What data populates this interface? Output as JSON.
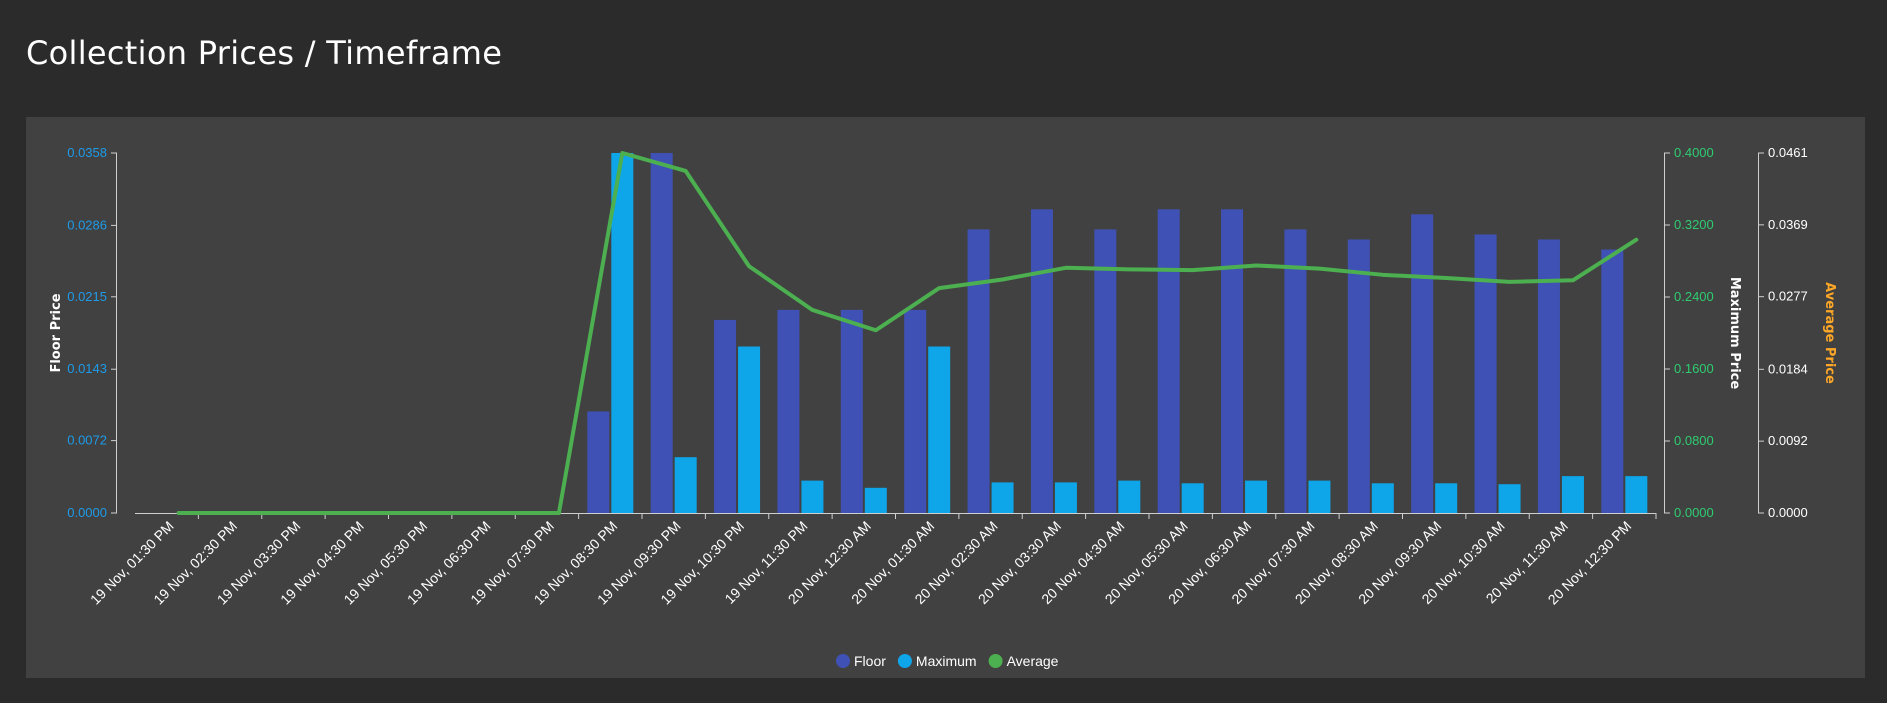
{
  "page": {
    "title": "Collection Prices / Timeframe"
  },
  "chart_data": {
    "type": "bar",
    "categories": [
      "19 Nov, 01:30 PM",
      "19 Nov, 02:30 PM",
      "19 Nov, 03:30 PM",
      "19 Nov, 04:30 PM",
      "19 Nov, 05:30 PM",
      "19 Nov, 06:30 PM",
      "19 Nov, 07:30 PM",
      "19 Nov, 08:30 PM",
      "19 Nov, 09:30 PM",
      "19 Nov, 10:30 PM",
      "19 Nov, 11:30 PM",
      "20 Nov, 12:30 AM",
      "20 Nov, 01:30 AM",
      "20 Nov, 02:30 AM",
      "20 Nov, 03:30 AM",
      "20 Nov, 04:30 AM",
      "20 Nov, 05:30 AM",
      "20 Nov, 06:30 AM",
      "20 Nov, 07:30 AM",
      "20 Nov, 08:30 AM",
      "20 Nov, 09:30 AM",
      "20 Nov, 10:30 AM",
      "20 Nov, 11:30 AM",
      "20 Nov, 12:30 PM"
    ],
    "series": [
      {
        "name": "Floor",
        "kind": "bar",
        "axis": "floor",
        "color": "#3f51b5",
        "values": [
          0,
          0,
          0,
          0,
          0,
          0,
          0,
          0.0101,
          0.0358,
          0.0192,
          0.0202,
          0.0202,
          0.0202,
          0.0282,
          0.0302,
          0.0282,
          0.0302,
          0.0302,
          0.0282,
          0.0272,
          0.0297,
          0.0277,
          0.0272,
          0.0262
        ]
      },
      {
        "name": "Maximum",
        "kind": "bar",
        "axis": "maximum",
        "color": "#0ea5e9",
        "values": [
          0,
          0,
          0,
          0,
          0,
          0,
          0,
          0.4,
          0.062,
          0.185,
          0.036,
          0.028,
          0.185,
          0.034,
          0.034,
          0.036,
          0.033,
          0.036,
          0.036,
          0.033,
          0.033,
          0.032,
          0.041,
          0.041
        ]
      },
      {
        "name": "Average",
        "kind": "line",
        "axis": "average",
        "color": "#4caf50",
        "values": [
          0,
          0,
          0,
          0,
          0,
          0,
          0,
          0.0461,
          0.0438,
          0.0316,
          0.026,
          0.0234,
          0.0288,
          0.0299,
          0.0314,
          0.0312,
          0.0311,
          0.0317,
          0.0313,
          0.0305,
          0.0301,
          0.0296,
          0.0298,
          0.035
        ]
      }
    ],
    "axes": {
      "floor": {
        "title": "Floor Price",
        "position": "left",
        "color": "#1e9be8",
        "ticks": [
          "0.0000",
          "0.0072",
          "0.0143",
          "0.0215",
          "0.0286",
          "0.0358"
        ],
        "range": [
          0,
          0.0358
        ]
      },
      "maximum": {
        "title": "Maximum Price",
        "position": "right",
        "color": "#2ecc71",
        "ticks": [
          "0.0000",
          "0.0800",
          "0.1600",
          "0.2400",
          "0.3200",
          "0.4000"
        ],
        "range": [
          0,
          0.4
        ]
      },
      "average": {
        "title": "Average Price",
        "position": "right",
        "color": "#ffa726",
        "ticks": [
          "0.0000",
          "0.0092",
          "0.0184",
          "0.0277",
          "0.0369",
          "0.0461"
        ],
        "range": [
          0,
          0.0461
        ]
      }
    },
    "legend": {
      "placement": "bottom-center"
    },
    "grid": false
  }
}
